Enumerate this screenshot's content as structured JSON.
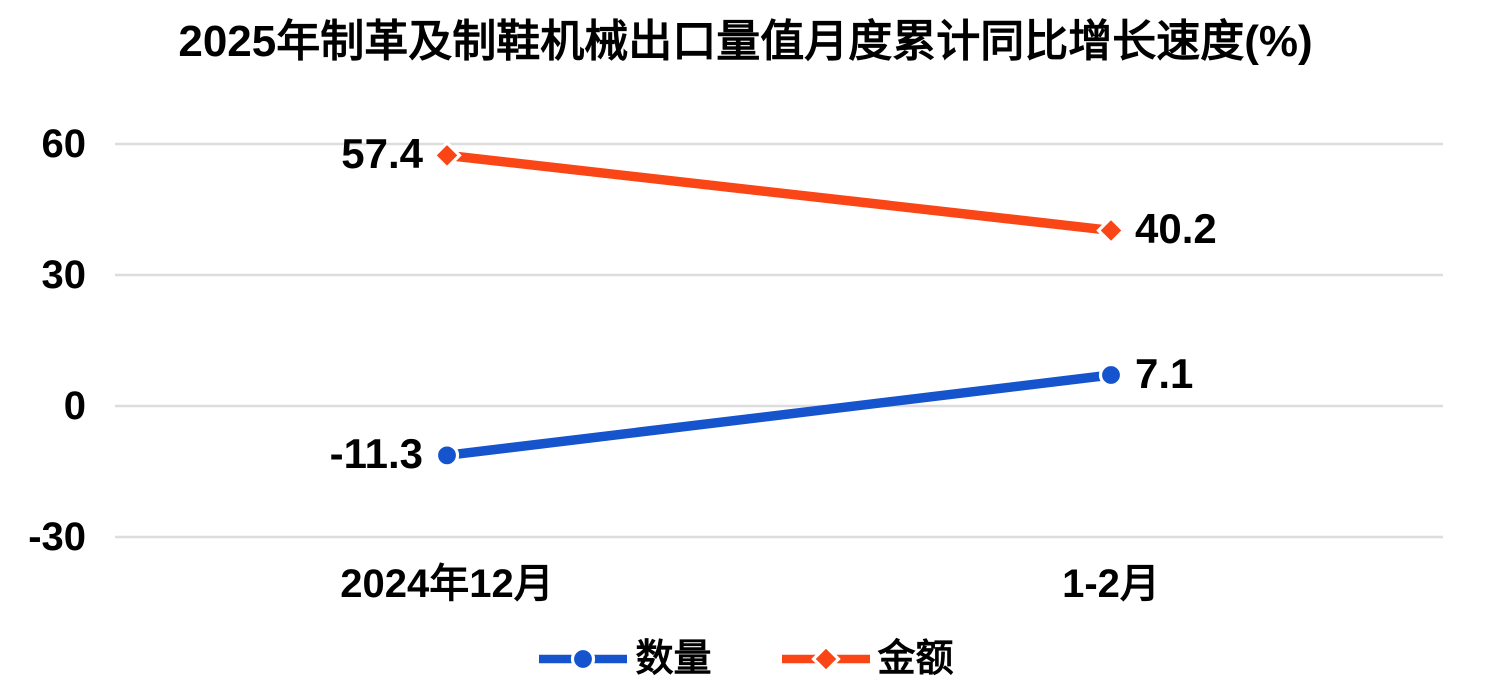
{
  "page": {
    "background": "#FFFFFF"
  },
  "chart_data": {
    "type": "line",
    "title": "2025年制革及制鞋机械出口量值月度累计同比增长速度(%)",
    "categories": [
      "2024年12月",
      "1-2月"
    ],
    "series": [
      {
        "key": "quantity",
        "name": "数量",
        "color": "#1554CC",
        "marker": "circle",
        "values": [
          -11.3,
          7.1
        ]
      },
      {
        "key": "amount",
        "name": "金额",
        "color": "#FA4616",
        "marker": "diamond",
        "values": [
          57.4,
          40.2
        ]
      }
    ],
    "ylim": [
      -30,
      60
    ],
    "yticks": [
      60,
      30,
      0,
      -30
    ],
    "xlabel": "",
    "ylabel": "",
    "grid": "horizontal-only",
    "gridline_color": "#DDDDDD",
    "text_color": "#000000",
    "legend_position": "bottom",
    "data_labels": true
  }
}
